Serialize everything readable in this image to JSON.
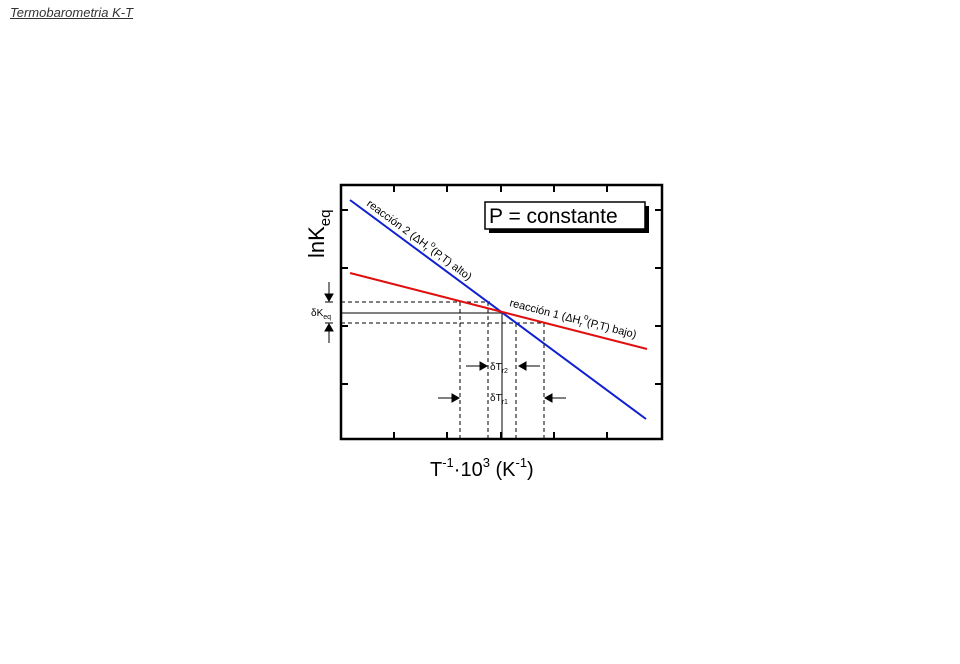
{
  "page": {
    "title_link": "Termobarometria K-T"
  },
  "diagram": {
    "y_axis_label": "lnK",
    "y_axis_sub": "eq",
    "x_axis_label": {
      "base1": "T",
      "sup1": "-1",
      "mid": "·10",
      "sup2": "3",
      "unit": " (K",
      "sup3": "-1",
      "close": ")"
    },
    "box_label": "P = constante",
    "reaction1": {
      "prefix": "reacción 1 (ΔH",
      "sub": "r",
      "sup": "o",
      "suffix": "(P,T) bajo)",
      "color": "#e01010"
    },
    "reaction2": {
      "prefix": "reacción 2 (ΔH",
      "sub": "r",
      "sup": "o",
      "suffix": "(P,T) alto)",
      "color": "#1020d0"
    },
    "dk_label": {
      "main": "δK",
      "sub": "eq"
    },
    "dt_r2": {
      "main": "δT",
      "sub": "r2"
    },
    "dt_r1": {
      "main": "δT",
      "sub": "r1"
    }
  }
}
